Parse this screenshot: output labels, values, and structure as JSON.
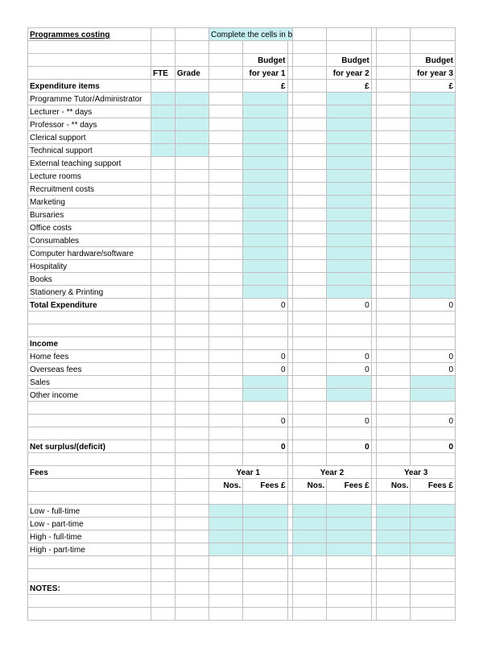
{
  "title": "Programmes costing",
  "instruction": "Complete the cells in blue",
  "headers": {
    "fte": "FTE",
    "grade": "Grade",
    "budget1": "Budget",
    "budget2": "Budget",
    "budget3": "Budget",
    "year1": "for year 1",
    "year2": "for year 2",
    "year3": "for year 3",
    "pound": "£",
    "nos": "Nos.",
    "fees_pound": "Fees £",
    "y1": "Year 1",
    "y2": "Year 2",
    "y3": "Year 3"
  },
  "sections": {
    "expenditure": "Expenditure items",
    "total_exp": "Total Expenditure",
    "income": "Income",
    "net": "Net surplus/(deficit)",
    "fees": "Fees",
    "notes": "NOTES:"
  },
  "expenditure_items": [
    "Programme Tutor/Administrator",
    "Lecturer - ** days",
    "Professor - ** days",
    "Clerical support",
    "Technical support",
    "External teaching support",
    "Lecture rooms",
    "Recruitment costs",
    "Marketing",
    "Bursaries",
    "Office costs",
    "Consumables",
    "Computer hardware/software",
    "Hospitality",
    "Books",
    "Stationery & Printing"
  ],
  "income_items": [
    "Home fees",
    "Overseas fees",
    "Sales",
    "Other income"
  ],
  "fee_items": [
    "Low - full-time",
    "Low - part-time",
    "High - full-time",
    "High - part-time"
  ],
  "zero": "0",
  "colors": {
    "blue_cell": "#c8f0f0",
    "border": "#c0c0c0",
    "background": "#ffffff",
    "text": "#000000"
  }
}
